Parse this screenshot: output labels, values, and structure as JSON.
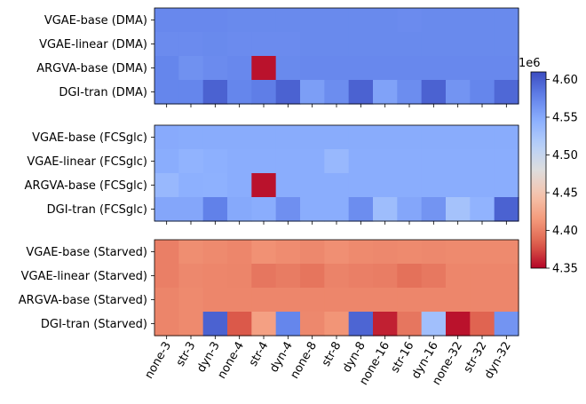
{
  "chart_data": {
    "type": "heatmap",
    "colormap": "coolwarm",
    "columns": [
      "none-3",
      "str-3",
      "dyn-3",
      "none-4",
      "str-4",
      "dyn-4",
      "none-8",
      "str-8",
      "dyn-8",
      "none-16",
      "str-16",
      "dyn-16",
      "none-32",
      "str-32",
      "dyn-32"
    ],
    "colorbar": {
      "vmin": 4.35,
      "vmax": 4.61,
      "ticks": [
        "4.35",
        "4.40",
        "4.45",
        "4.50",
        "4.55",
        "4.60"
      ],
      "tick_values": [
        4.35,
        4.4,
        4.45,
        4.5,
        4.55,
        4.6
      ],
      "offset_label": "1e6"
    },
    "panels": [
      {
        "rows": [
          "VGAE-base (DMA)",
          "VGAE-linear (DMA)",
          "ARGVA-base (DMA)",
          "DGI-tran (DMA)"
        ],
        "values": [
          [
            4.573,
            4.573,
            4.573,
            4.572,
            4.572,
            4.572,
            4.572,
            4.572,
            4.572,
            4.572,
            4.571,
            4.572,
            4.572,
            4.572,
            4.572
          ],
          [
            4.571,
            4.571,
            4.572,
            4.571,
            4.571,
            4.571,
            4.572,
            4.572,
            4.572,
            4.572,
            4.572,
            4.572,
            4.572,
            4.572,
            4.572
          ],
          [
            4.575,
            4.567,
            4.571,
            4.573,
            4.355,
            4.572,
            4.573,
            4.573,
            4.573,
            4.573,
            4.573,
            4.573,
            4.573,
            4.573,
            4.573
          ],
          [
            4.575,
            4.575,
            4.597,
            4.575,
            4.58,
            4.597,
            4.558,
            4.57,
            4.597,
            4.555,
            4.57,
            4.597,
            4.565,
            4.575,
            4.593
          ]
        ]
      },
      {
        "rows": [
          "VGAE-base (FCSglc)",
          "VGAE-linear (FCSglc)",
          "ARGVA-base (FCSglc)",
          "DGI-tran (FCSglc)"
        ],
        "values": [
          [
            4.549,
            4.548,
            4.548,
            4.548,
            4.548,
            4.548,
            4.548,
            4.548,
            4.548,
            4.548,
            4.548,
            4.548,
            4.548,
            4.548,
            4.548
          ],
          [
            4.547,
            4.542,
            4.545,
            4.547,
            4.547,
            4.547,
            4.547,
            4.537,
            4.547,
            4.547,
            4.547,
            4.547,
            4.547,
            4.547,
            4.547
          ],
          [
            4.537,
            4.545,
            4.544,
            4.547,
            4.355,
            4.547,
            4.547,
            4.547,
            4.547,
            4.547,
            4.547,
            4.547,
            4.547,
            4.547,
            4.547
          ],
          [
            4.552,
            4.552,
            4.578,
            4.55,
            4.547,
            4.568,
            4.547,
            4.547,
            4.57,
            4.532,
            4.552,
            4.565,
            4.527,
            4.542,
            4.597
          ]
        ]
      },
      {
        "rows": [
          "VGAE-base (Starved)",
          "VGAE-linear (Starved)",
          "ARGVA-base (Starved)",
          "DGI-tran (Starved)"
        ],
        "values": [
          [
            4.4,
            4.408,
            4.406,
            4.404,
            4.41,
            4.407,
            4.405,
            4.409,
            4.406,
            4.405,
            4.406,
            4.405,
            4.406,
            4.406,
            4.406
          ],
          [
            4.4,
            4.405,
            4.404,
            4.403,
            4.395,
            4.398,
            4.394,
            4.402,
            4.4,
            4.399,
            4.392,
            4.396,
            4.404,
            4.404,
            4.404
          ],
          [
            4.403,
            4.406,
            4.404,
            4.404,
            4.404,
            4.404,
            4.404,
            4.404,
            4.404,
            4.404,
            4.404,
            4.404,
            4.404,
            4.404,
            4.404
          ],
          [
            4.403,
            4.406,
            4.597,
            4.38,
            4.42,
            4.575,
            4.405,
            4.412,
            4.595,
            4.36,
            4.395,
            4.53,
            4.355,
            4.385,
            4.565
          ]
        ]
      }
    ]
  }
}
